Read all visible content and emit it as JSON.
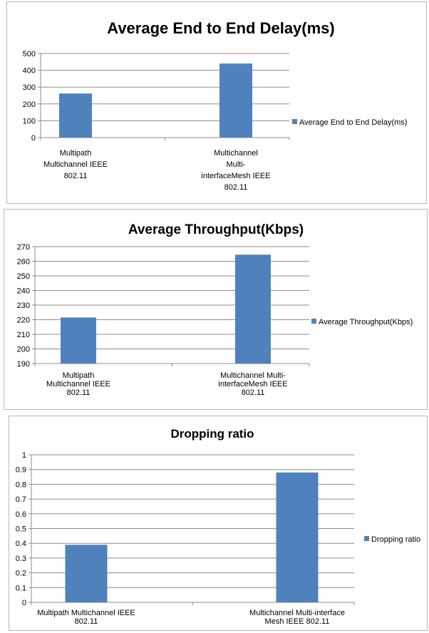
{
  "chart_data": [
    {
      "type": "bar",
      "title": "Average End to End Delay(ms)",
      "categories": [
        [
          "Multipath",
          "Multichannel IEEE",
          "802.11"
        ],
        [
          "Multichannel",
          "Multi-",
          "interfaceMesh IEEE",
          "802.11"
        ]
      ],
      "series": [
        {
          "name": "Average End to End Delay(ms)",
          "values": [
            262,
            440
          ]
        }
      ],
      "ylim": [
        0,
        500
      ],
      "yticks": [
        0,
        100,
        200,
        300,
        400,
        500
      ],
      "grid": true,
      "legend": "right",
      "bar_color": "#4f81bd"
    },
    {
      "type": "bar",
      "title": "Average Throughput(Kbps)",
      "categories": [
        [
          "Multipath",
          "Multichannel IEEE",
          "802.11"
        ],
        [
          "Multichannel Multi-",
          "interfaceMesh IEEE",
          "802.11"
        ]
      ],
      "series": [
        {
          "name": "Average Throughput(Kbps)",
          "values": [
            221.5,
            264.5
          ]
        }
      ],
      "ylim": [
        190,
        270
      ],
      "yticks": [
        190,
        200,
        210,
        220,
        230,
        240,
        250,
        260,
        270
      ],
      "grid": true,
      "legend": "right",
      "bar_color": "#4f81bd"
    },
    {
      "type": "bar",
      "title": "Dropping ratio",
      "categories": [
        [
          "Multipath Multichannel IEEE",
          "802.11"
        ],
        [
          "Multichannel Multi-interface",
          "Mesh IEEE 802.11"
        ]
      ],
      "series": [
        {
          "name": "Dropping ratio",
          "values": [
            0.39,
            0.88
          ]
        }
      ],
      "ylim": [
        0,
        1
      ],
      "yticks": [
        0,
        0.1,
        0.2,
        0.3,
        0.4,
        0.5,
        0.6,
        0.7,
        0.8,
        0.9,
        1
      ],
      "grid": true,
      "legend": "right",
      "bar_color": "#4f81bd"
    }
  ]
}
